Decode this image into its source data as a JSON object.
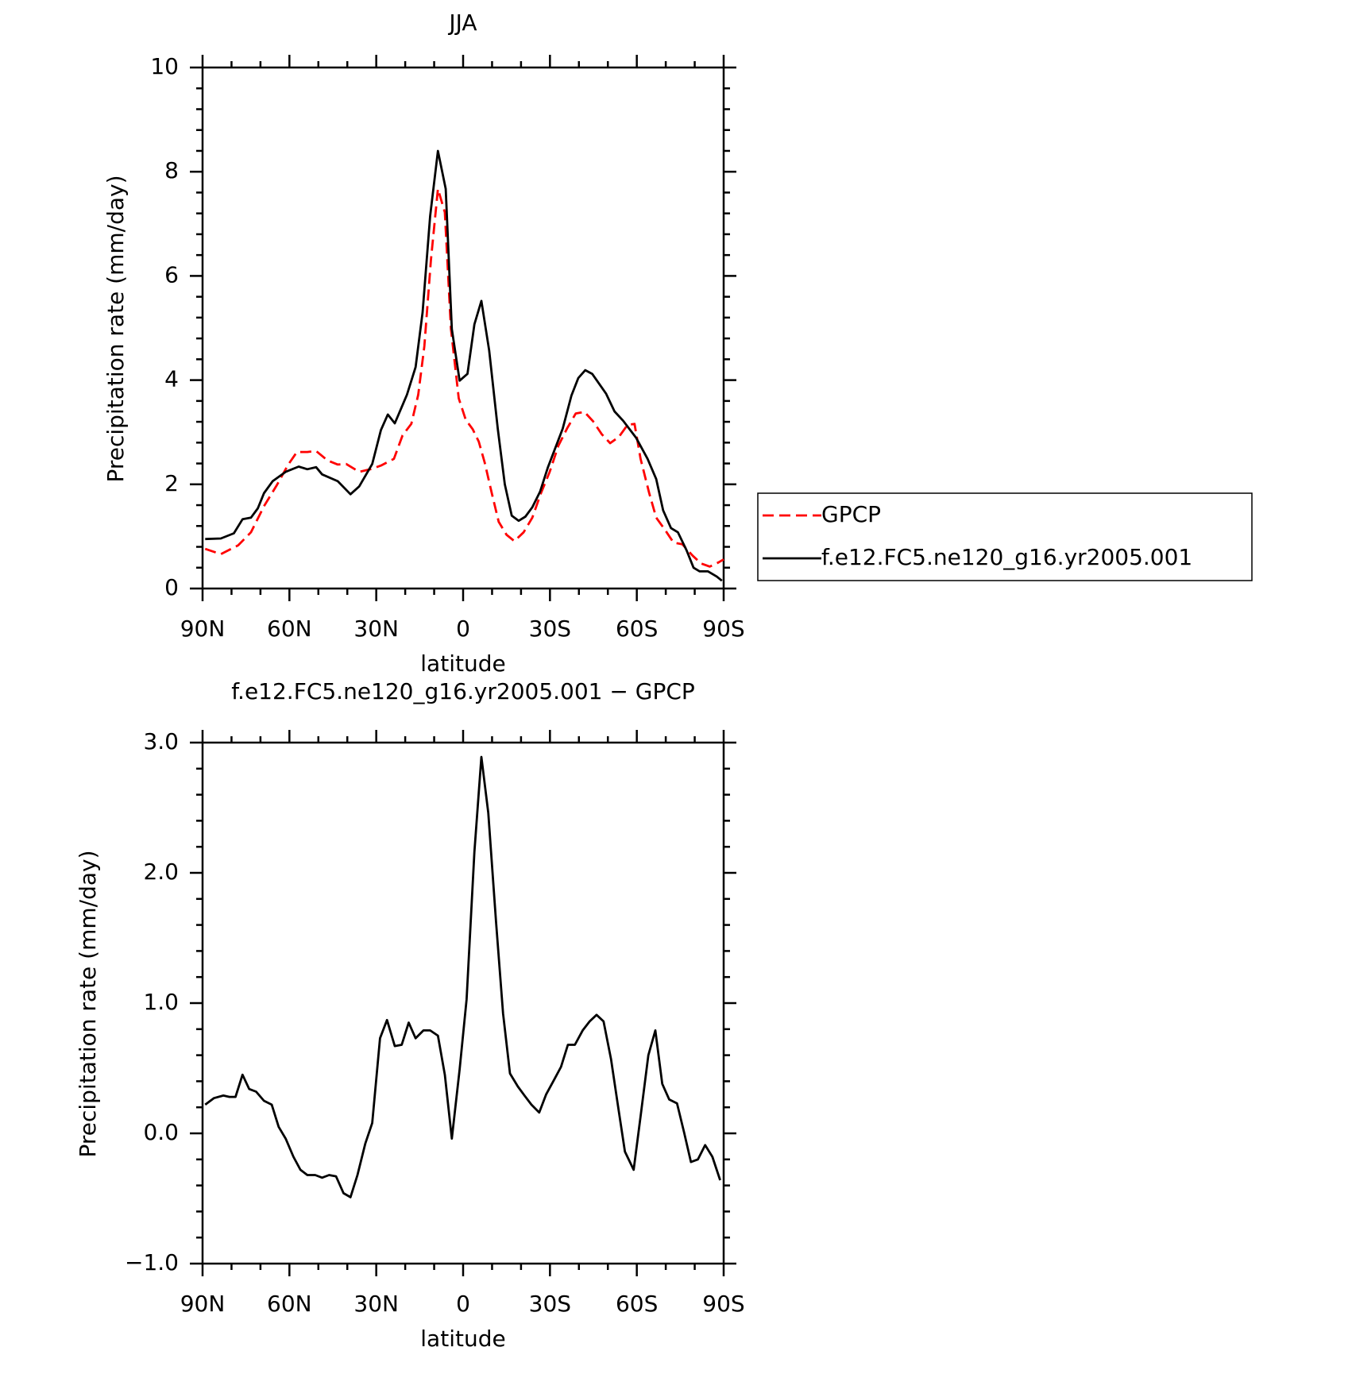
{
  "chart_data": [
    {
      "type": "line",
      "title": "JJA",
      "xlabel": "latitude",
      "ylabel": "Precipitation rate (mm/day)",
      "xlim": [
        90,
        -90
      ],
      "xticks": [
        {
          "value": 90,
          "label": "90N"
        },
        {
          "value": 60,
          "label": "60N"
        },
        {
          "value": 30,
          "label": "30N"
        },
        0,
        {
          "value": -30,
          "label": "30S"
        },
        {
          "value": -60,
          "label": "60S"
        },
        {
          "value": -90,
          "label": "90S"
        }
      ],
      "xminorticks": [
        80,
        70,
        50,
        40,
        20,
        10,
        -10,
        -20,
        -40,
        -50,
        -70,
        -80
      ],
      "ylim": [
        0,
        10
      ],
      "yticks": [
        0,
        2,
        4,
        6,
        8,
        10
      ],
      "yminorticks": [
        0.4,
        0.8,
        1.2,
        1.6,
        2.4,
        2.8,
        3.2,
        3.6,
        4.4,
        4.8,
        5.2,
        5.6,
        6.4,
        6.8,
        7.2,
        7.6,
        8.4,
        8.8,
        9.2,
        9.6
      ],
      "legend": "right",
      "series": [
        {
          "name": "GPCP",
          "color": "#ff0000",
          "dash": true,
          "x": [
            89.1,
            83.7,
            77.7,
            73.3,
            68.8,
            64.3,
            60.4,
            57.4,
            53.8,
            50.8,
            46.9,
            43.3,
            40.4,
            35.9,
            32.0,
            28.4,
            23.9,
            20.9,
            17.9,
            15.5,
            13.4,
            11.1,
            8.7,
            6.3,
            4.2,
            1.5,
            -0.9,
            -3.3,
            -5.4,
            -7.5,
            -9.9,
            -12.3,
            -15.0,
            -17.7,
            -20.9,
            -23.9,
            -26.9,
            -29.9,
            -32.9,
            -35.9,
            -38.9,
            -41.9,
            -44.9,
            -47.9,
            -50.8,
            -53.8,
            -56.8,
            -59.2,
            -61.3,
            -64.3,
            -66.7,
            -69.7,
            -72.7,
            -75.7,
            -79.3,
            -82.2,
            -85.2,
            -88.2,
            -90
          ],
          "values": [
            0.76,
            0.66,
            0.83,
            1.08,
            1.58,
            1.99,
            2.38,
            2.62,
            2.62,
            2.64,
            2.46,
            2.38,
            2.39,
            2.24,
            2.29,
            2.36,
            2.49,
            2.94,
            3.16,
            3.72,
            4.65,
            6.31,
            7.67,
            7.22,
            4.98,
            3.65,
            3.24,
            3.06,
            2.82,
            2.41,
            1.83,
            1.28,
            1.03,
            0.91,
            1.08,
            1.36,
            1.83,
            2.24,
            2.74,
            3.07,
            3.36,
            3.39,
            3.21,
            2.96,
            2.79,
            2.91,
            3.14,
            3.16,
            2.49,
            1.83,
            1.36,
            1.13,
            0.88,
            0.85,
            0.63,
            0.48,
            0.42,
            0.5,
            0.56
          ]
        },
        {
          "name": "f.e12.FC5.ne120_g16.yr2005.001",
          "color": "#000000",
          "dash": false,
          "x": [
            89.1,
            83.7,
            79.2,
            76.2,
            73.3,
            70.9,
            68.8,
            65.8,
            61.3,
            56.8,
            53.8,
            50.8,
            48.7,
            43.3,
            38.9,
            35.9,
            31.4,
            28.4,
            26.0,
            23.6,
            19.4,
            16.4,
            14.0,
            11.4,
            8.7,
            6.0,
            3.9,
            1.2,
            -1.5,
            -3.9,
            -6.3,
            -9.0,
            -12.0,
            -14.4,
            -16.8,
            -19.2,
            -21.5,
            -23.9,
            -26.6,
            -29.3,
            -34.4,
            -37.4,
            -39.8,
            -42.2,
            -44.6,
            -49.4,
            -52.3,
            -55.3,
            -59.8,
            -63.7,
            -66.7,
            -69.1,
            -71.8,
            -74.2,
            -77.2,
            -79.6,
            -81.7,
            -84.6,
            -87.6,
            -89.4
          ],
          "values": [
            0.95,
            0.96,
            1.06,
            1.33,
            1.36,
            1.54,
            1.83,
            2.06,
            2.24,
            2.34,
            2.29,
            2.33,
            2.19,
            2.06,
            1.81,
            1.96,
            2.39,
            3.04,
            3.34,
            3.17,
            3.72,
            4.25,
            5.3,
            7.15,
            8.4,
            7.67,
            4.98,
            3.99,
            4.12,
            5.07,
            5.52,
            4.57,
            3.06,
            2.0,
            1.4,
            1.3,
            1.38,
            1.56,
            1.86,
            2.33,
            3.07,
            3.7,
            4.04,
            4.19,
            4.12,
            3.74,
            3.4,
            3.22,
            2.89,
            2.49,
            2.1,
            1.5,
            1.16,
            1.08,
            0.73,
            0.4,
            0.33,
            0.33,
            0.23,
            0.15
          ]
        }
      ]
    },
    {
      "type": "line",
      "title": "f.e12.FC5.ne120_g16.yr2005.001 − GPCP",
      "xlabel": "latitude",
      "ylabel": "Precipitation rate (mm/day)",
      "xlim": [
        90,
        -90
      ],
      "xticks": [
        {
          "value": 90,
          "label": "90N"
        },
        {
          "value": 60,
          "label": "60N"
        },
        {
          "value": 30,
          "label": "30N"
        },
        0,
        {
          "value": -30,
          "label": "30S"
        },
        {
          "value": -60,
          "label": "60S"
        },
        {
          "value": -90,
          "label": "90S"
        }
      ],
      "xminorticks": [
        80,
        70,
        50,
        40,
        20,
        10,
        -10,
        -20,
        -40,
        -50,
        -70,
        -80
      ],
      "ylim": [
        -1,
        3
      ],
      "yticks": [
        {
          "value": -1,
          "label": "−1.0"
        },
        {
          "value": 0,
          "label": "0.0"
        },
        {
          "value": 1,
          "label": "1.0"
        },
        {
          "value": 2,
          "label": "2.0"
        },
        {
          "value": 3,
          "label": "3.0"
        }
      ],
      "yminorticks": [
        -0.8,
        -0.6,
        -0.4,
        -0.2,
        0.2,
        0.4,
        0.6,
        0.8,
        1.2,
        1.4,
        1.6,
        1.8,
        2.2,
        2.4,
        2.6,
        2.8
      ],
      "series": [
        {
          "color": "#000000",
          "dash": false,
          "x": [
            89.1,
            86.1,
            82.8,
            80.7,
            78.6,
            76.2,
            73.9,
            71.5,
            68.8,
            66.1,
            63.7,
            61.3,
            58.6,
            56.2,
            53.8,
            51.1,
            48.7,
            46.3,
            43.9,
            41.3,
            38.9,
            36.5,
            33.8,
            31.4,
            28.7,
            26.3,
            23.6,
            21.2,
            18.8,
            16.4,
            13.7,
            11.4,
            8.7,
            6.3,
            3.9,
            1.2,
            -1.2,
            -3.9,
            -6.3,
            -8.7,
            -11.4,
            -13.8,
            -16.2,
            -18.9,
            -21.2,
            -23.6,
            -26.3,
            -28.7,
            -31.4,
            -33.8,
            -36.2,
            -38.6,
            -41.3,
            -43.7,
            -46.1,
            -48.5,
            -51.1,
            -53.5,
            -55.9,
            -58.9,
            -61.3,
            -64.0,
            -66.4,
            -68.8,
            -71.2,
            -73.9,
            -76.3,
            -78.7,
            -81.1,
            -83.6,
            -86.1,
            -88.8
          ],
          "values": [
            0.22,
            0.27,
            0.29,
            0.28,
            0.28,
            0.45,
            0.34,
            0.32,
            0.25,
            0.22,
            0.05,
            -0.04,
            -0.18,
            -0.28,
            -0.32,
            -0.32,
            -0.34,
            -0.32,
            -0.33,
            -0.46,
            -0.49,
            -0.32,
            -0.08,
            0.08,
            0.73,
            0.87,
            0.67,
            0.68,
            0.85,
            0.73,
            0.79,
            0.79,
            0.75,
            0.45,
            -0.04,
            0.49,
            1.03,
            2.16,
            2.89,
            2.46,
            1.62,
            0.92,
            0.46,
            0.36,
            0.29,
            0.22,
            0.16,
            0.3,
            0.41,
            0.51,
            0.68,
            0.68,
            0.79,
            0.86,
            0.91,
            0.86,
            0.57,
            0.21,
            -0.14,
            -0.28,
            0.13,
            0.6,
            0.79,
            0.38,
            0.26,
            0.23,
            0.01,
            -0.22,
            -0.2,
            -0.09,
            -0.18,
            -0.36
          ]
        }
      ]
    }
  ]
}
